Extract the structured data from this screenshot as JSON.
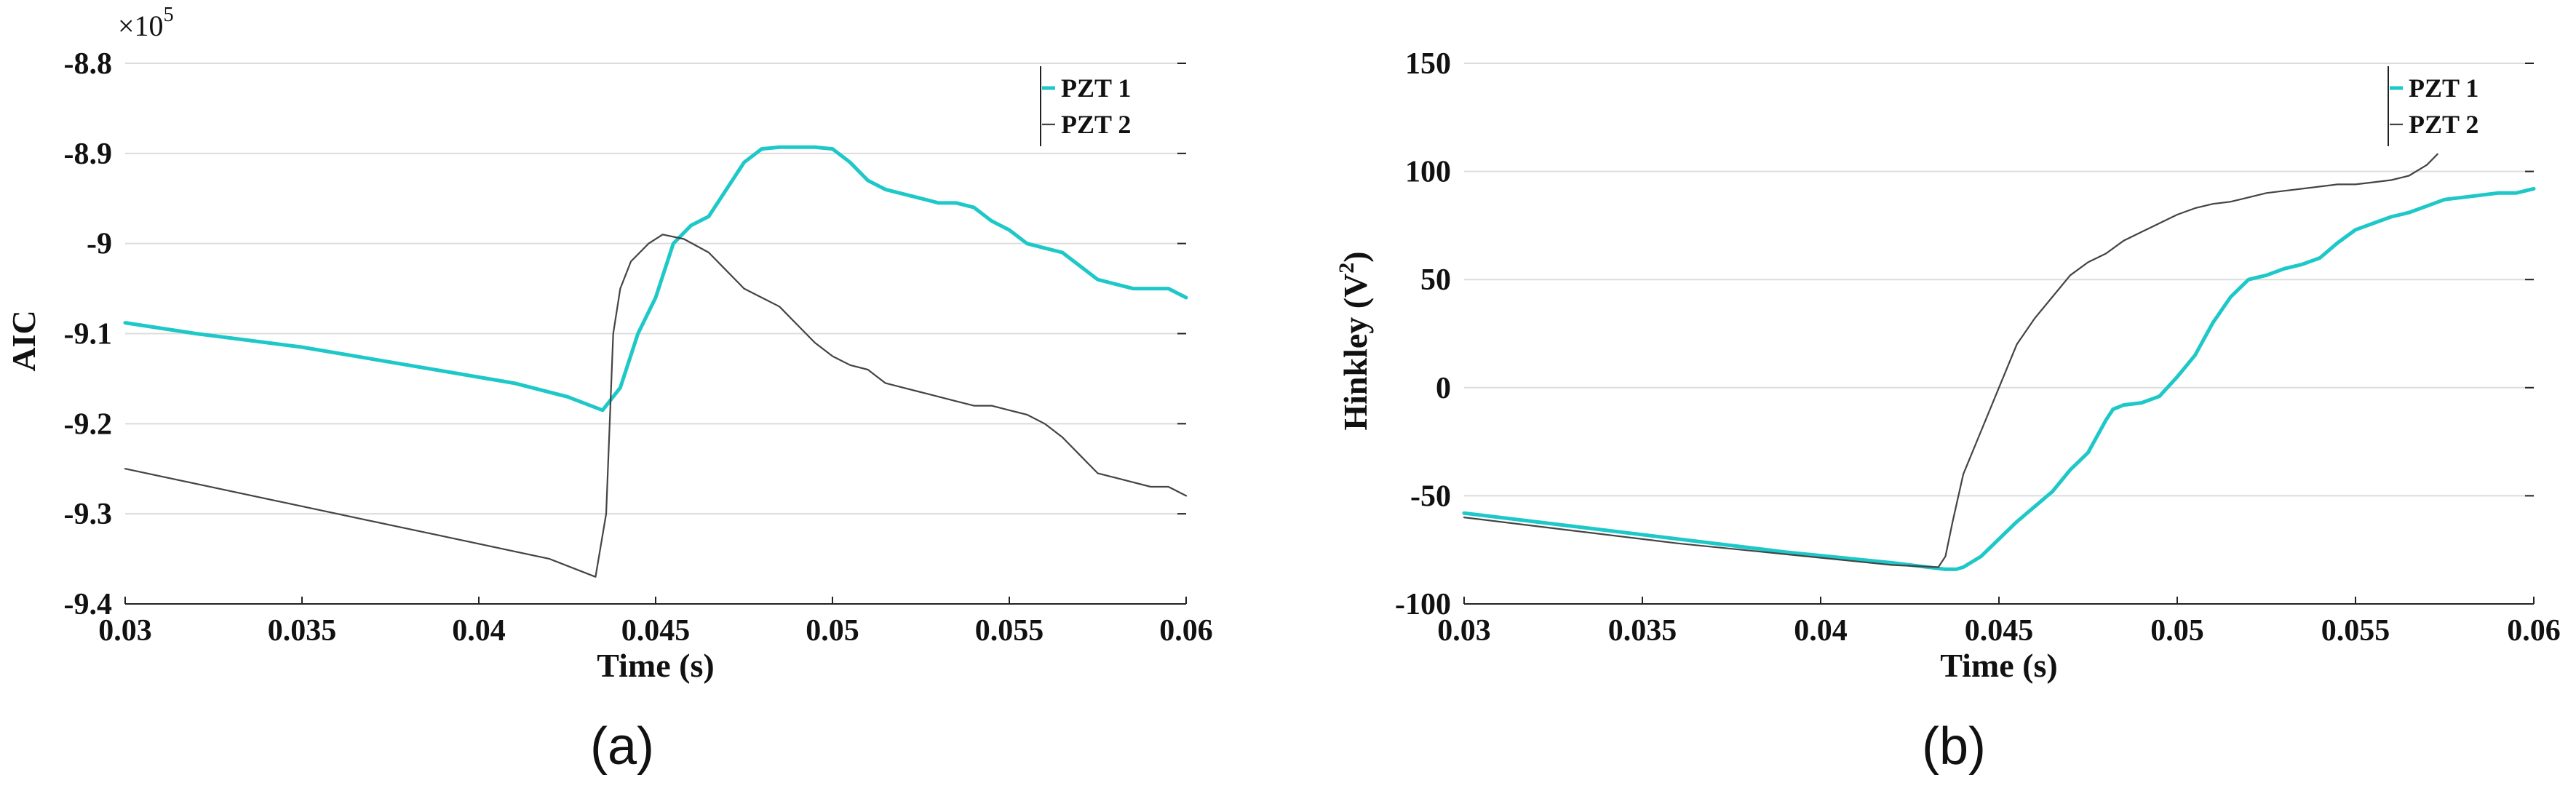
{
  "chart_data": [
    {
      "type": "line",
      "panel_label": "(a)",
      "title": "",
      "xlabel": "Time (s)",
      "ylabel": "AIC",
      "y_scale_exponent_prefix": "×10",
      "y_scale_exponent": "5",
      "xlim": [
        0.03,
        0.06
      ],
      "ylim": [
        -9.4,
        -8.8
      ],
      "xticks": [
        0.03,
        0.035,
        0.04,
        0.045,
        0.05,
        0.055,
        0.06
      ],
      "xtick_labels": [
        "0.03",
        "0.035",
        "0.04",
        "0.045",
        "0.05",
        "0.055",
        "0.06"
      ],
      "yticks": [
        -9.4,
        -9.3,
        -9.2,
        -9.1,
        -9.0,
        -8.9,
        -8.8
      ],
      "ytick_labels": [
        "-9.4",
        "-9.3",
        "-9.2",
        "-9.1",
        "-9",
        "-8.9",
        "-8.8"
      ],
      "grid": true,
      "legend_position": "top-right",
      "series": [
        {
          "name": "PZT 1",
          "color": "#1ec8c8",
          "x": [
            0.03,
            0.032,
            0.035,
            0.038,
            0.041,
            0.0425,
            0.0435,
            0.044,
            0.0445,
            0.045,
            0.0455,
            0.046,
            0.0465,
            0.047,
            0.0475,
            0.048,
            0.0485,
            0.049,
            0.0495,
            0.05,
            0.0505,
            0.051,
            0.0515,
            0.052,
            0.0525,
            0.053,
            0.0535,
            0.054,
            0.0545,
            0.055,
            0.0555,
            0.056,
            0.0565,
            0.057,
            0.0575,
            0.058,
            0.0585,
            0.059,
            0.0595,
            0.06
          ],
          "y": [
            -9.088,
            -9.1,
            -9.115,
            -9.135,
            -9.155,
            -9.17,
            -9.185,
            -9.16,
            -9.1,
            -9.06,
            -9.0,
            -8.98,
            -8.97,
            -8.94,
            -8.91,
            -8.895,
            -8.893,
            -8.893,
            -8.893,
            -8.895,
            -8.91,
            -8.93,
            -8.94,
            -8.945,
            -8.95,
            -8.955,
            -8.955,
            -8.96,
            -8.975,
            -8.985,
            -9.0,
            -9.005,
            -9.01,
            -9.025,
            -9.04,
            -9.045,
            -9.05,
            -9.05,
            -9.05,
            -9.06
          ]
        },
        {
          "name": "PZT 2",
          "color": "#444444",
          "x": [
            0.03,
            0.033,
            0.036,
            0.039,
            0.042,
            0.0433,
            0.0436,
            0.0438,
            0.044,
            0.0443,
            0.0448,
            0.0452,
            0.0458,
            0.0465,
            0.047,
            0.0475,
            0.048,
            0.0485,
            0.049,
            0.0495,
            0.05,
            0.0505,
            0.051,
            0.0515,
            0.052,
            0.0525,
            0.053,
            0.0535,
            0.054,
            0.0545,
            0.055,
            0.0555,
            0.056,
            0.0565,
            0.057,
            0.0575,
            0.058,
            0.0585,
            0.059,
            0.0595,
            0.06
          ],
          "y": [
            -9.25,
            -9.275,
            -9.3,
            -9.325,
            -9.35,
            -9.37,
            -9.3,
            -9.1,
            -9.05,
            -9.02,
            -9.0,
            -8.99,
            -8.995,
            -9.01,
            -9.03,
            -9.05,
            -9.06,
            -9.07,
            -9.09,
            -9.11,
            -9.125,
            -9.135,
            -9.14,
            -9.155,
            -9.16,
            -9.165,
            -9.17,
            -9.175,
            -9.18,
            -9.18,
            -9.185,
            -9.19,
            -9.2,
            -9.215,
            -9.235,
            -9.255,
            -9.26,
            -9.265,
            -9.27,
            -9.27,
            -9.28
          ]
        }
      ]
    },
    {
      "type": "line",
      "panel_label": "(b)",
      "title": "",
      "xlabel": "Time (s)",
      "ylabel": "Hinkley (V",
      "ylabel_superscript": "2",
      "ylabel_suffix": ")",
      "xlim": [
        0.03,
        0.06
      ],
      "ylim": [
        -100,
        150
      ],
      "xticks": [
        0.03,
        0.035,
        0.04,
        0.045,
        0.05,
        0.055,
        0.06
      ],
      "xtick_labels": [
        "0.03",
        "0.035",
        "0.04",
        "0.045",
        "0.05",
        "0.055",
        "0.06"
      ],
      "yticks": [
        -100,
        -50,
        0,
        50,
        100,
        150
      ],
      "ytick_labels": [
        "-100",
        "-50",
        "0",
        "50",
        "100",
        "150"
      ],
      "grid": true,
      "legend_position": "top-right",
      "series": [
        {
          "name": "PZT 1",
          "color": "#1ec8c8",
          "x": [
            0.03,
            0.033,
            0.036,
            0.039,
            0.042,
            0.0435,
            0.0438,
            0.044,
            0.0445,
            0.045,
            0.0455,
            0.046,
            0.0465,
            0.047,
            0.0475,
            0.048,
            0.0482,
            0.0485,
            0.049,
            0.0495,
            0.05,
            0.0505,
            0.051,
            0.0515,
            0.052,
            0.0525,
            0.053,
            0.0535,
            0.054,
            0.0545,
            0.055,
            0.0555,
            0.056,
            0.0565,
            0.057,
            0.0575,
            0.058,
            0.0585,
            0.059,
            0.0595,
            0.06
          ],
          "y": [
            -58,
            -64,
            -70,
            -76,
            -81,
            -84,
            -84,
            -83,
            -78,
            -70,
            -62,
            -55,
            -48,
            -38,
            -30,
            -15,
            -10,
            -8,
            -7,
            -4,
            5,
            15,
            30,
            42,
            50,
            52,
            55,
            57,
            60,
            67,
            73,
            76,
            79,
            81,
            84,
            87,
            88,
            89,
            90,
            90,
            92
          ]
        },
        {
          "name": "PZT 2",
          "color": "#444444",
          "x": [
            0.03,
            0.033,
            0.036,
            0.039,
            0.042,
            0.0433,
            0.0435,
            0.0437,
            0.044,
            0.0443,
            0.0447,
            0.045,
            0.0455,
            0.046,
            0.0465,
            0.047,
            0.0475,
            0.048,
            0.0485,
            0.049,
            0.0495,
            0.05,
            0.0505,
            0.051,
            0.0515,
            0.052,
            0.0525,
            0.053,
            0.0535,
            0.054,
            0.0545,
            0.055,
            0.0555,
            0.056,
            0.0565,
            0.057,
            0.0573
          ],
          "y": [
            -60,
            -66,
            -72,
            -77,
            -82,
            -83,
            -78,
            -62,
            -40,
            -28,
            -12,
            0,
            20,
            32,
            42,
            52,
            58,
            62,
            68,
            72,
            76,
            80,
            83,
            85,
            86,
            88,
            90,
            91,
            92,
            93,
            94,
            94,
            95,
            96,
            98,
            103,
            108
          ]
        }
      ]
    }
  ]
}
